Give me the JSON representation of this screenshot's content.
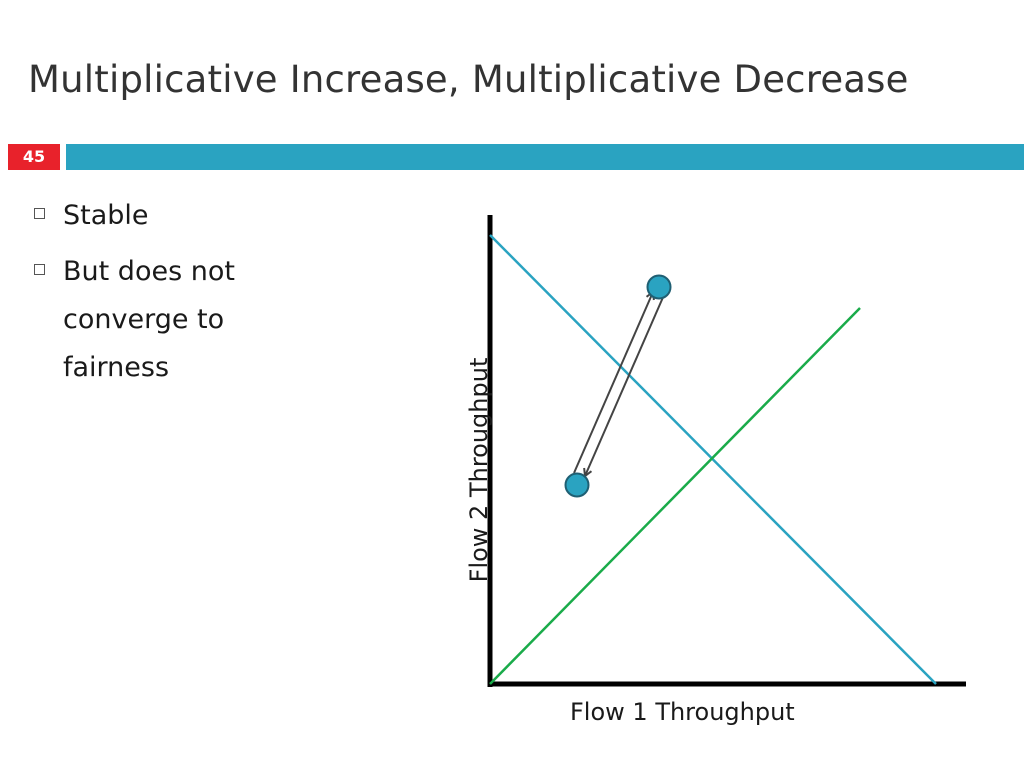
{
  "slide": {
    "title": "Multiplicative Increase, Multiplicative Decrease",
    "number": "45",
    "accent_color": "#2aa3c1",
    "number_color": "#e8222b"
  },
  "bullets": [
    {
      "text": "Stable"
    },
    {
      "text": "But does not converge to fairness"
    }
  ],
  "diagram": {
    "x_axis_label": "Flow 1 Throughput",
    "y_axis_label": "Flow 2 Throughput",
    "efficiency_line_color": "#2aa3c1",
    "fairness_line_color": "#1aab4a",
    "point_color": "#2aa3c1",
    "icons": [
      "axis-lines",
      "efficiency-line",
      "fairness-line",
      "double-arrow",
      "state-point"
    ]
  }
}
